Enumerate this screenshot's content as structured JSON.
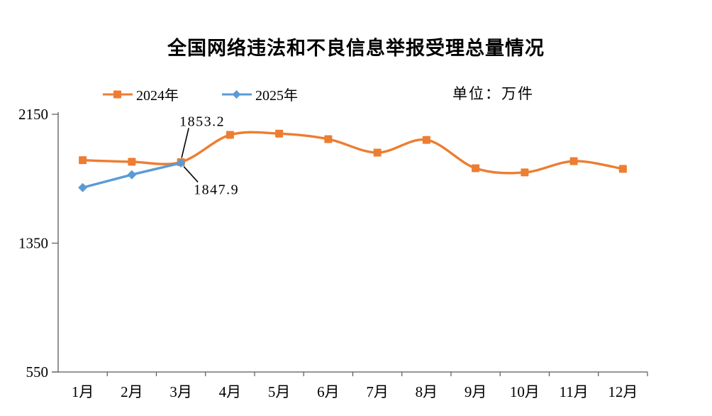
{
  "chart": {
    "title": "全国网络违法和不良信息举报受理总量情况",
    "unit_label": "单位：万件",
    "legend": [
      {
        "label": "2024年",
        "color": "#ED7D31",
        "marker": "square"
      },
      {
        "label": "2025年",
        "color": "#5B9BD5",
        "marker": "diamond"
      }
    ]
  },
  "chart_data": {
    "type": "line",
    "title": "全国网络违法和不良信息举报受理总量情况",
    "unit": "万件",
    "categories": [
      "1月",
      "2月",
      "3月",
      "4月",
      "5月",
      "6月",
      "7月",
      "8月",
      "9月",
      "10月",
      "11月",
      "12月"
    ],
    "series": [
      {
        "name": "2024年",
        "color": "#ED7D31",
        "marker": "square",
        "smooth": true,
        "values": [
          1865,
          1855,
          1853.2,
          2022,
          2030,
          1996,
          1912,
          1991,
          1815,
          1789,
          1859,
          1811
        ]
      },
      {
        "name": "2025年",
        "color": "#5B9BD5",
        "marker": "diamond",
        "smooth": false,
        "values": [
          1695,
          1775,
          1847.9
        ]
      }
    ],
    "annotations": [
      {
        "text": "1853.2",
        "series": "2024年",
        "month_index": 2,
        "value": 1853.2,
        "placement": "above"
      },
      {
        "text": "1847.9",
        "series": "2025年",
        "month_index": 2,
        "value": 1847.9,
        "placement": "below"
      }
    ],
    "y_axis": {
      "min": 550,
      "max": 2150,
      "ticks": [
        550,
        1350,
        2150
      ]
    },
    "x_axis_label_suffix": "月",
    "legend_position": "top-left",
    "grid": false,
    "axis_color": "#595959"
  }
}
